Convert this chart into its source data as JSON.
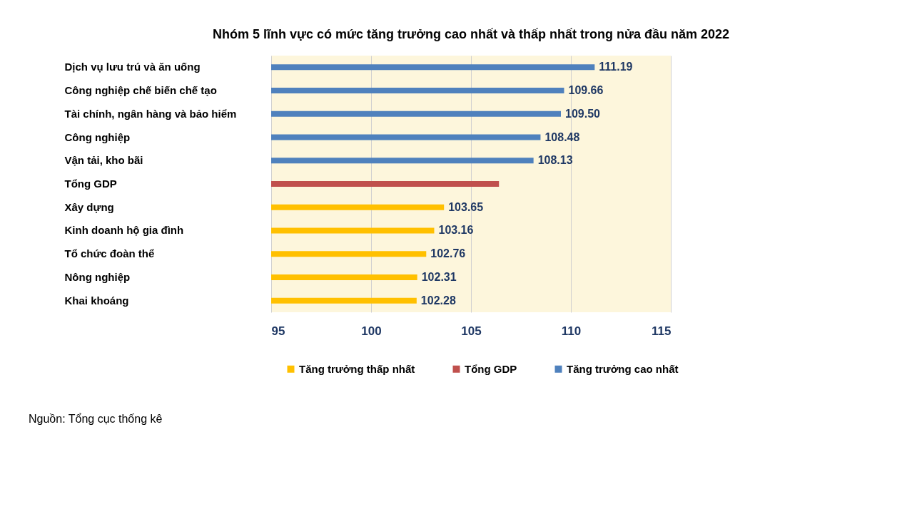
{
  "chart_data": {
    "type": "bar",
    "orientation": "horizontal",
    "title": "Nhóm 5 lĩnh vực có mức tăng trưởng cao nhất và thấp nhất trong nửa đầu năm 2022",
    "categories": [
      "Dịch vụ lưu trú và ăn uống",
      "Công nghiệp chế biến chế tạo",
      "Tài chính, ngân hàng và bảo hiểm",
      "Công nghiệp",
      "Vận tải, kho bãi",
      "Tổng GDP",
      "Xây dựng",
      "Kinh doanh hộ gia đình",
      "Tổ chức đoàn thể",
      "Nông nghiệp",
      "Khai khoáng"
    ],
    "series": [
      {
        "name": "Tăng trưởng thấp nhất",
        "color": "#ffc000",
        "values": [
          null,
          null,
          null,
          null,
          null,
          null,
          103.65,
          103.16,
          102.76,
          102.31,
          102.28
        ],
        "value_labels": [
          null,
          null,
          null,
          null,
          null,
          null,
          "103.65",
          "103.16",
          "102.76",
          "102.31",
          "102.28"
        ]
      },
      {
        "name": "Tổng GDP",
        "color": "#c0504d",
        "values": [
          null,
          null,
          null,
          null,
          null,
          106.4,
          null,
          null,
          null,
          null,
          null
        ],
        "value_labels": [
          null,
          null,
          null,
          null,
          null,
          null,
          null,
          null,
          null,
          null,
          null
        ]
      },
      {
        "name": "Tăng trưởng cao nhất",
        "color": "#4f81bd",
        "values": [
          111.19,
          109.66,
          109.5,
          108.48,
          108.13,
          null,
          null,
          null,
          null,
          null,
          null
        ],
        "value_labels": [
          "111.19",
          "109.66",
          "109.50",
          "108.48",
          "108.13",
          null,
          null,
          null,
          null,
          null,
          null
        ]
      }
    ],
    "xlim": [
      95,
      115
    ],
    "xticks": [
      95,
      100,
      105,
      110,
      115
    ],
    "grid": "x",
    "legend": "bottom",
    "annotations": [
      "Nguồn: Tổng cục thống kê"
    ]
  }
}
